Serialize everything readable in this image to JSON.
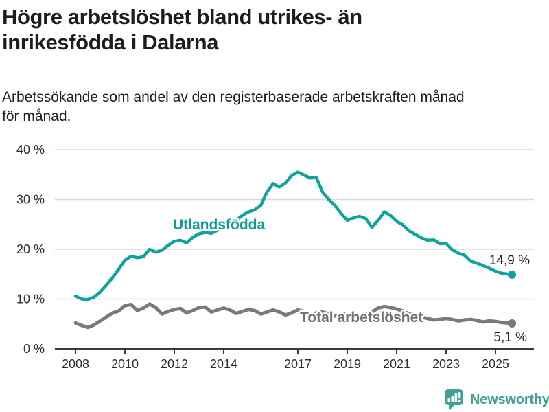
{
  "header": {
    "title_lines": [
      "Högre arbetslöshet bland utrikes- än",
      "inrikesfödda i Dalarna"
    ],
    "subtitle_lines": [
      "Arbetssökande som andel av den registerbaserade arbetskraften månad",
      "för månad."
    ]
  },
  "chart_data": {
    "type": "line",
    "title": "Högre arbetslöshet bland utrikes- än inrikesfödda i Dalarna",
    "subtitle": "Arbetssökande som andel av den registerbaserade arbetskraften månad för månad.",
    "xlabel": "",
    "ylabel": "",
    "ylim": [
      0,
      40
    ],
    "xlim": [
      2007.2,
      2026.3
    ],
    "grid": "horizontal",
    "legend_position": "inline-labels",
    "x": [
      2008.0,
      2008.25,
      2008.5,
      2008.75,
      2009.0,
      2009.25,
      2009.5,
      2009.75,
      2010.0,
      2010.25,
      2010.5,
      2010.75,
      2011.0,
      2011.25,
      2011.5,
      2011.75,
      2012.0,
      2012.25,
      2012.5,
      2012.75,
      2013.0,
      2013.25,
      2013.5,
      2013.75,
      2014.0,
      2014.25,
      2014.5,
      2014.75,
      2015.0,
      2015.25,
      2015.5,
      2015.75,
      2016.0,
      2016.25,
      2016.5,
      2016.75,
      2017.0,
      2017.25,
      2017.5,
      2017.75,
      2018.0,
      2018.25,
      2018.5,
      2018.75,
      2019.0,
      2019.25,
      2019.5,
      2019.75,
      2020.0,
      2020.25,
      2020.5,
      2020.75,
      2021.0,
      2021.25,
      2021.5,
      2021.75,
      2022.0,
      2022.25,
      2022.5,
      2022.75,
      2023.0,
      2023.25,
      2023.5,
      2023.75,
      2024.0,
      2024.25,
      2024.5,
      2024.75,
      2025.0,
      2025.25,
      2025.67
    ],
    "series": [
      {
        "name": "Utlandsfödda",
        "color": "#0fa39b",
        "end_label": "14,9 %",
        "end_value": 14.9,
        "values": [
          10.6,
          10.0,
          9.9,
          10.4,
          11.4,
          12.8,
          14.3,
          16.0,
          17.8,
          18.6,
          18.3,
          18.5,
          20.0,
          19.4,
          19.8,
          20.8,
          21.6,
          21.8,
          21.3,
          22.4,
          23.1,
          23.4,
          23.2,
          23.8,
          24.4,
          25.1,
          25.8,
          26.8,
          27.5,
          27.9,
          28.8,
          31.5,
          33.2,
          32.5,
          33.3,
          34.8,
          35.5,
          34.9,
          34.3,
          34.4,
          31.5,
          30.0,
          28.8,
          27.2,
          25.8,
          26.3,
          26.6,
          26.2,
          24.4,
          25.8,
          27.5,
          26.8,
          25.6,
          24.9,
          23.7,
          23.0,
          22.3,
          21.8,
          21.9,
          21.1,
          21.2,
          19.9,
          19.2,
          18.8,
          17.6,
          17.2,
          16.7,
          16.2,
          15.6,
          15.2,
          14.9
        ]
      },
      {
        "name": "Total arbetslöshet",
        "color": "#7a7a7a",
        "end_label": "5,1 %",
        "end_value": 5.1,
        "values": [
          5.2,
          4.7,
          4.3,
          4.8,
          5.6,
          6.4,
          7.2,
          7.6,
          8.7,
          8.9,
          7.7,
          8.2,
          9.0,
          8.3,
          7.0,
          7.5,
          7.9,
          8.1,
          7.2,
          7.7,
          8.3,
          8.4,
          7.4,
          7.8,
          8.2,
          7.8,
          7.1,
          7.5,
          7.9,
          7.7,
          7.0,
          7.4,
          7.8,
          7.4,
          6.8,
          7.2,
          7.8,
          7.5,
          6.9,
          7.2,
          7.4,
          7.0,
          6.6,
          6.8,
          7.1,
          6.9,
          6.7,
          7.0,
          7.4,
          8.2,
          8.5,
          8.3,
          8.0,
          7.6,
          7.0,
          6.7,
          6.4,
          6.1,
          5.8,
          5.9,
          6.1,
          5.9,
          5.6,
          5.8,
          5.9,
          5.7,
          5.4,
          5.6,
          5.5,
          5.3,
          5.1
        ]
      }
    ],
    "yticks": [
      {
        "value": 0,
        "label": "0 %"
      },
      {
        "value": 10,
        "label": "10 %"
      },
      {
        "value": 20,
        "label": "20 %"
      },
      {
        "value": 30,
        "label": "30 %"
      },
      {
        "value": 40,
        "label": "40 %"
      }
    ],
    "xticks": [
      {
        "year": 2008,
        "label": "2008"
      },
      {
        "year": 2010,
        "label": "2010"
      },
      {
        "year": 2012,
        "label": "2012"
      },
      {
        "year": 2014,
        "label": "2014"
      },
      {
        "year": 2017,
        "label": "2017"
      },
      {
        "year": 2019,
        "label": "2019"
      },
      {
        "year": 2021,
        "label": "2021"
      },
      {
        "year": 2023,
        "label": "2023"
      },
      {
        "year": 2025,
        "label": "2025"
      }
    ]
  },
  "colors": {
    "accent_teal": "#0fa39b",
    "line_gray": "#7a7a7a",
    "grid": "#d9d9d9",
    "axis": "#3a3a3a",
    "text": "#1d1d1b",
    "brand_teal": "#3fa093"
  },
  "footer": {
    "brand": "Newsworthy"
  }
}
